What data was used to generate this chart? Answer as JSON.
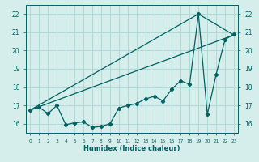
{
  "xlabel": "Humidex (Indice chaleur)",
  "bg_color": "#d5eeec",
  "grid_color": "#a8d8d4",
  "line_color": "#006060",
  "xlim": [
    -0.5,
    23.5
  ],
  "ylim": [
    15.5,
    22.5
  ],
  "yticks": [
    16,
    17,
    18,
    19,
    20,
    21,
    22
  ],
  "xticks": [
    0,
    1,
    2,
    3,
    4,
    5,
    6,
    7,
    8,
    9,
    10,
    11,
    12,
    13,
    14,
    15,
    16,
    17,
    18,
    19,
    20,
    21,
    22,
    23
  ],
  "series1_x": [
    0,
    1,
    2,
    3,
    4,
    5,
    6,
    7,
    8,
    9,
    10,
    11,
    12,
    13,
    14,
    15,
    16,
    17,
    18,
    19,
    20,
    21,
    22,
    23
  ],
  "series1_y": [
    16.75,
    16.9,
    16.55,
    17.0,
    15.95,
    16.05,
    16.1,
    15.8,
    15.85,
    16.0,
    16.85,
    17.0,
    17.1,
    17.35,
    17.5,
    17.25,
    17.9,
    18.35,
    18.15,
    22.0,
    16.5,
    18.7,
    20.6,
    20.9
  ],
  "series2_x": [
    0,
    23
  ],
  "series2_y": [
    16.75,
    20.85
  ],
  "series3_x": [
    0,
    19,
    23
  ],
  "series3_y": [
    16.75,
    22.0,
    20.85
  ],
  "marker": "D",
  "marker_size": 2.2,
  "line_width": 0.9
}
